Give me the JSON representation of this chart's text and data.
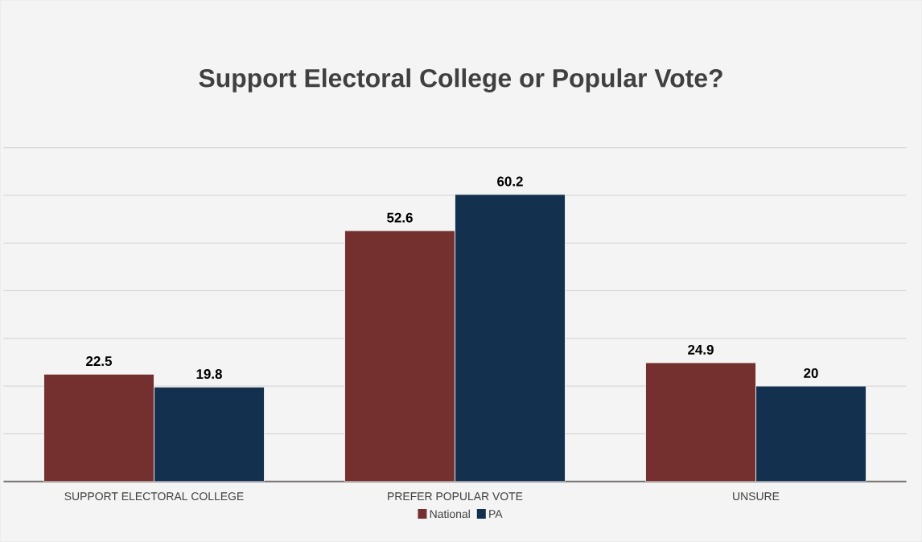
{
  "chart_data": {
    "type": "bar",
    "title": "Support Electoral College or Popular Vote?",
    "categories": [
      "SUPPORT ELECTORAL COLLEGE",
      "PREFER POPULAR VOTE",
      "UNSURE"
    ],
    "series": [
      {
        "name": "National",
        "color": "#74302e",
        "values": [
          22.5,
          52.6,
          24.9
        ]
      },
      {
        "name": "PA",
        "color": "#14304f",
        "values": [
          19.8,
          60.2,
          20
        ]
      }
    ],
    "ylim": [
      0,
      70
    ],
    "yticks": [
      {
        "value": 0,
        "label": null
      },
      {
        "value": 10,
        "label": null
      },
      {
        "value": 20,
        "label": null
      },
      {
        "value": 30,
        "label": null
      },
      {
        "value": 40,
        "label": null
      },
      {
        "value": 50,
        "label": null
      },
      {
        "value": 60,
        "label": null
      },
      {
        "value": 70,
        "label": null
      }
    ],
    "tick_labels": "x",
    "grid": "y",
    "legend": "bottom",
    "data_labels": true
  }
}
